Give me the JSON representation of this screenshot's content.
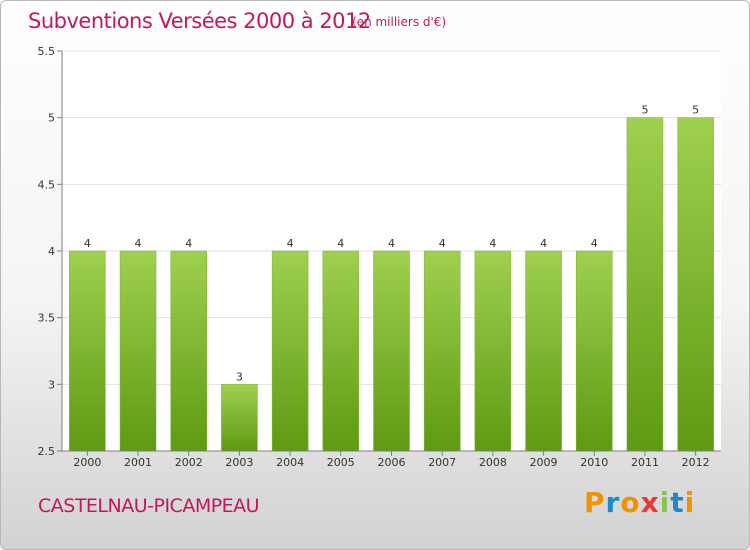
{
  "header": {
    "title": "Subventions Versées 2000 à 2012",
    "unit_note": "(en milliers d'€)"
  },
  "footer": {
    "commune": "CASTELNAU-PICAMPEAU",
    "brand": {
      "letters": [
        "P",
        "r",
        "o",
        "x",
        "i",
        "t",
        "i"
      ],
      "colors": [
        "#f39200",
        "#1e88c8",
        "#f39200",
        "#e53935",
        "#8bc34a",
        "#1e88c8",
        "#f39200"
      ]
    }
  },
  "colors": {
    "bar_top": "#9fd04f",
    "bar_bottom": "#5e9a12",
    "grid": "#e0e0e0",
    "axis": "#808080",
    "text": "#333333"
  },
  "chart_data": {
    "type": "bar",
    "categories": [
      "2000",
      "2001",
      "2002",
      "2003",
      "2004",
      "2005",
      "2006",
      "2007",
      "2008",
      "2009",
      "2010",
      "2011",
      "2012"
    ],
    "values": [
      4,
      4,
      4,
      3,
      4,
      4,
      4,
      4,
      4,
      4,
      4,
      5,
      5
    ],
    "data_labels": [
      "4",
      "4",
      "4",
      "3",
      "4",
      "4",
      "4",
      "4",
      "4",
      "4",
      "4",
      "5",
      "5"
    ],
    "title": "Subventions Versées 2000 à 2012",
    "ylim": [
      2.5,
      5.5
    ],
    "yticks": [
      2.5,
      3,
      3.5,
      4,
      4.5,
      5,
      5.5
    ],
    "ytick_labels": [
      "2.5",
      "3",
      "3.5",
      "4",
      "4.5",
      "5",
      "5.5"
    ],
    "grid": true
  }
}
